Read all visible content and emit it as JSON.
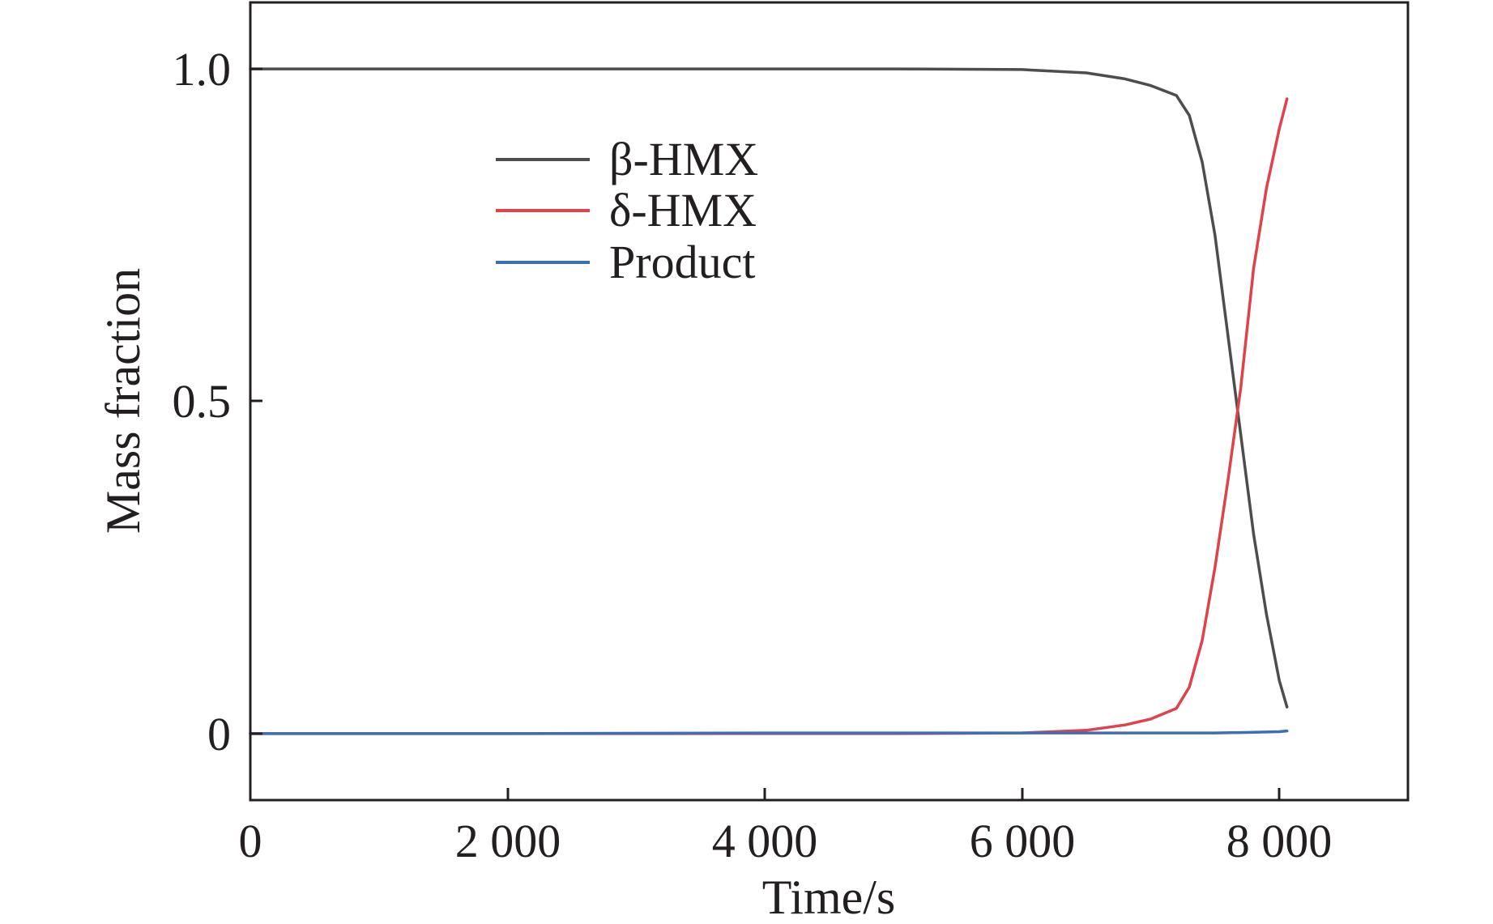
{
  "chart_data": {
    "type": "line",
    "xlabel": "Time/s",
    "ylabel": "Mass fraction",
    "xlim": [
      0,
      9000
    ],
    "ylim": [
      -0.1,
      1.1
    ],
    "x_ticks": [
      0,
      2000,
      4000,
      6000,
      8000
    ],
    "x_tick_labels": [
      "0",
      "2 000",
      "4 000",
      "6 000",
      "8 000"
    ],
    "y_ticks": [
      0,
      0.5,
      1.0
    ],
    "y_tick_labels": [
      "0",
      "0.5",
      "1.0"
    ],
    "grid": false,
    "legend_position": "upper-left-inside",
    "series": [
      {
        "name": "β-HMX",
        "color": "#4d4d4f",
        "points": [
          [
            0,
            1.0
          ],
          [
            2000,
            1.0
          ],
          [
            4000,
            1.0
          ],
          [
            5000,
            1.0
          ],
          [
            6000,
            0.999
          ],
          [
            6500,
            0.994
          ],
          [
            6800,
            0.985
          ],
          [
            7000,
            0.975
          ],
          [
            7200,
            0.96
          ],
          [
            7300,
            0.93
          ],
          [
            7400,
            0.86
          ],
          [
            7500,
            0.75
          ],
          [
            7600,
            0.6
          ],
          [
            7700,
            0.45
          ],
          [
            7800,
            0.3
          ],
          [
            7900,
            0.18
          ],
          [
            8000,
            0.08
          ],
          [
            8060,
            0.04
          ]
        ]
      },
      {
        "name": "δ-HMX",
        "color": "#e0424b",
        "points": [
          [
            0,
            0
          ],
          [
            2000,
            0
          ],
          [
            4000,
            0
          ],
          [
            5000,
            0
          ],
          [
            6000,
            0.001
          ],
          [
            6500,
            0.005
          ],
          [
            6800,
            0.013
          ],
          [
            7000,
            0.022
          ],
          [
            7200,
            0.038
          ],
          [
            7300,
            0.07
          ],
          [
            7400,
            0.14
          ],
          [
            7500,
            0.25
          ],
          [
            7600,
            0.38
          ],
          [
            7700,
            0.52
          ],
          [
            7800,
            0.7
          ],
          [
            7900,
            0.82
          ],
          [
            8000,
            0.91
          ],
          [
            8060,
            0.955
          ]
        ]
      },
      {
        "name": "Product",
        "color": "#3d6fb6",
        "points": [
          [
            0,
            0
          ],
          [
            2000,
            0
          ],
          [
            4000,
            0.001
          ],
          [
            6000,
            0.001
          ],
          [
            7000,
            0.001
          ],
          [
            7500,
            0.001
          ],
          [
            7800,
            0.002
          ],
          [
            8000,
            0.003
          ],
          [
            8060,
            0.004
          ]
        ]
      }
    ]
  }
}
